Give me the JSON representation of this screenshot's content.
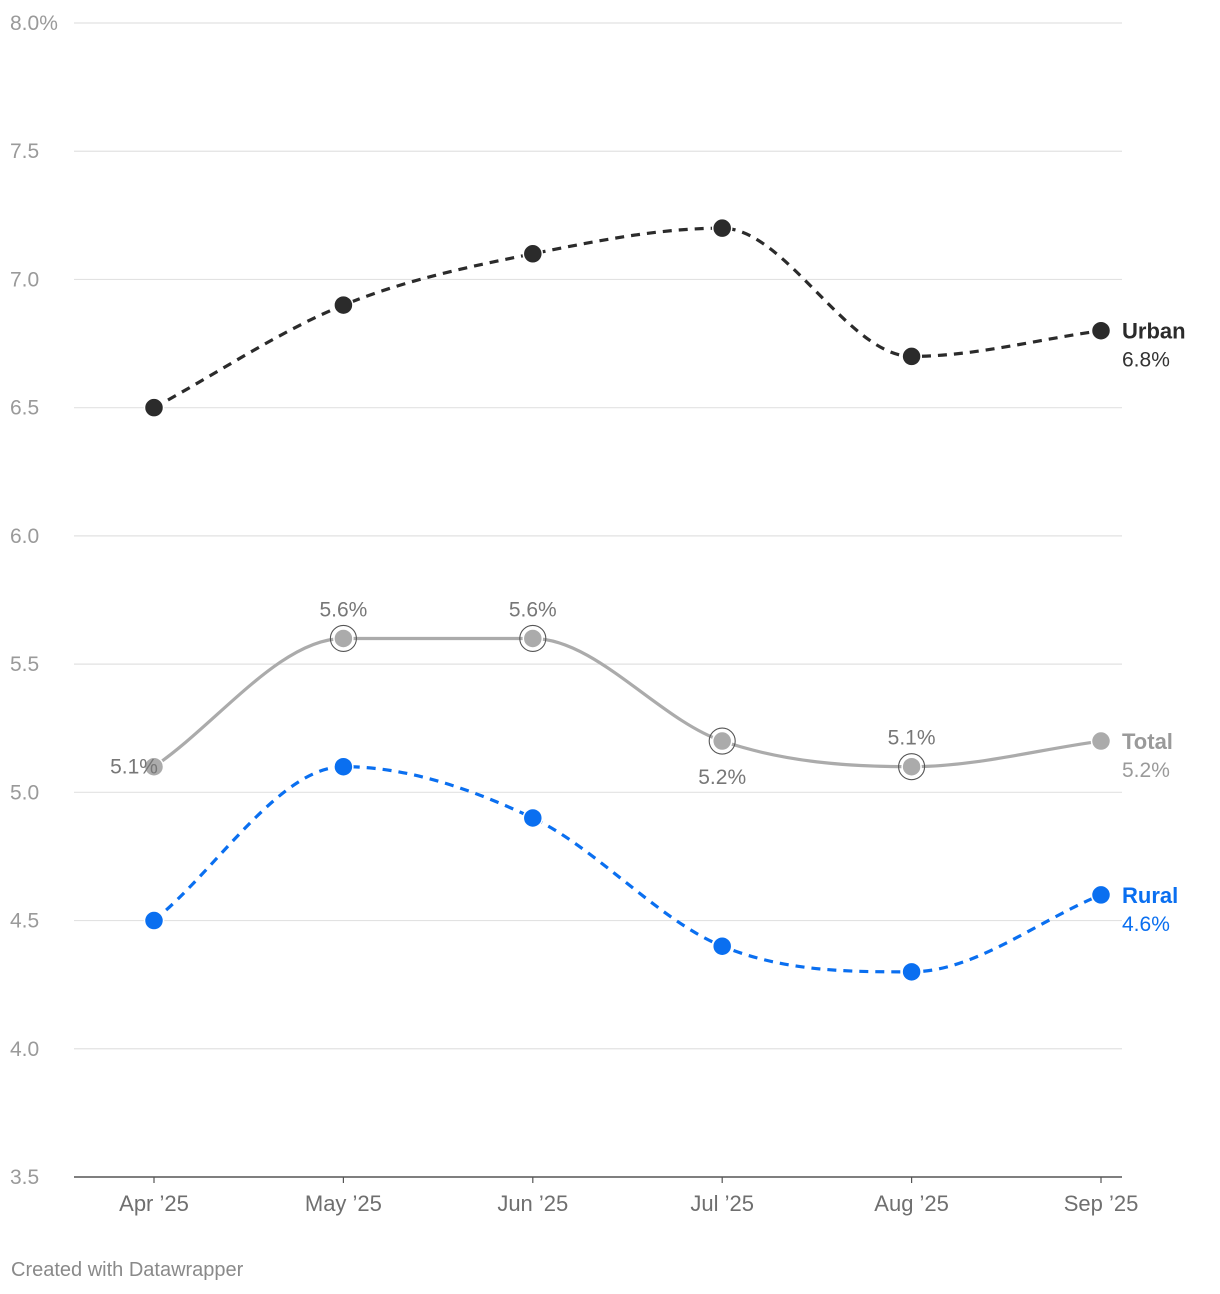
{
  "chart_data": {
    "type": "line",
    "categories": [
      "Apr ’25",
      "May ’25",
      "Jun ’25",
      "Jul ’25",
      "Aug ’25",
      "Sep ’25"
    ],
    "y_ticks": [
      "8.0%",
      "7.5",
      "7.0",
      "6.5",
      "6.0",
      "5.5",
      "5.0",
      "4.5",
      "4.0",
      "3.5"
    ],
    "ylim": [
      3.5,
      8.0
    ],
    "grid": true,
    "series": [
      {
        "name": "Urban",
        "values": [
          6.5,
          6.9,
          7.1,
          7.2,
          6.7,
          6.8
        ],
        "end_label": "6.8%",
        "color": "#2b2b2b",
        "dashed": true
      },
      {
        "name": "Total",
        "values": [
          5.1,
          5.6,
          5.6,
          5.2,
          5.1,
          5.2
        ],
        "end_label": "5.2%",
        "color": "#ababab",
        "dashed": false,
        "point_labels": [
          {
            "index": 0,
            "text": "5.1%"
          },
          {
            "index": 1,
            "text": "5.6%"
          },
          {
            "index": 2,
            "text": "5.6%"
          },
          {
            "index": 3,
            "text": "5.2%"
          },
          {
            "index": 4,
            "text": "5.1%"
          }
        ]
      },
      {
        "name": "Rural",
        "values": [
          4.5,
          5.1,
          4.9,
          4.4,
          4.3,
          4.6
        ],
        "end_label": "4.6%",
        "color": "#0a6ff0",
        "dashed": true
      }
    ]
  },
  "footer": "Created with Datawrapper"
}
